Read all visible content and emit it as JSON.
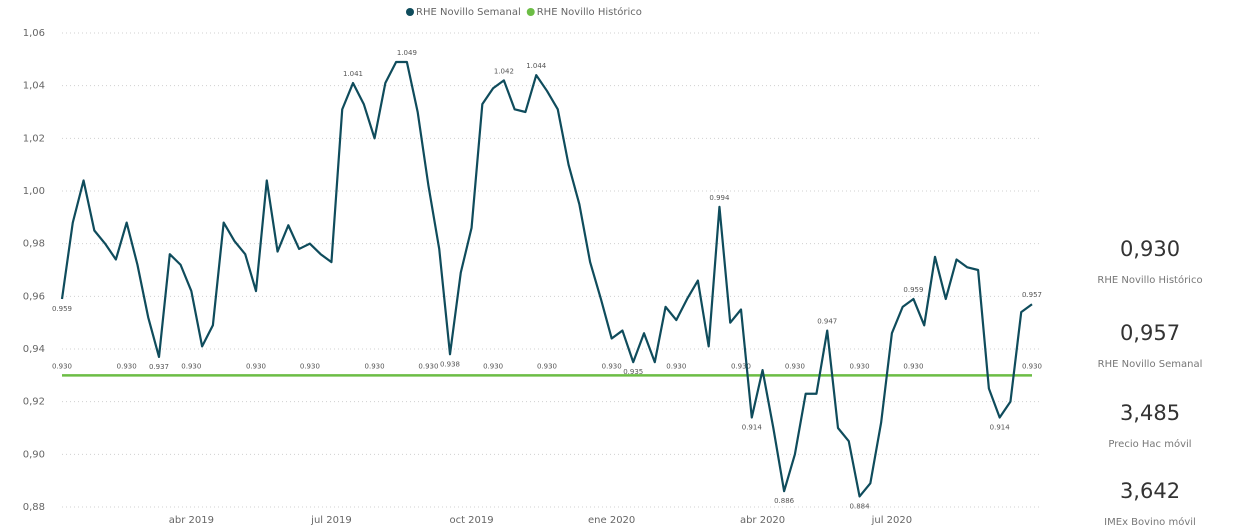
{
  "chart_data": {
    "type": "line",
    "categories": [
      null,
      null,
      null,
      null,
      null,
      null,
      null,
      null,
      null,
      null,
      null,
      null,
      "abr 2019",
      null,
      null,
      null,
      null,
      null,
      null,
      null,
      null,
      null,
      null,
      null,
      null,
      "jul 2019",
      null,
      null,
      null,
      null,
      null,
      null,
      null,
      null,
      null,
      null,
      null,
      null,
      "oct 2019",
      null,
      null,
      null,
      null,
      null,
      null,
      null,
      null,
      null,
      null,
      null,
      null,
      "ene 2020",
      null,
      null,
      null,
      null,
      null,
      null,
      null,
      null,
      null,
      null,
      null,
      null,
      null,
      "abr 2020",
      null,
      null,
      null,
      null,
      null,
      null,
      null,
      null,
      null,
      null,
      null,
      "jul 2020",
      null,
      null,
      null,
      null,
      null,
      null,
      null,
      null,
      null,
      null,
      null,
      null,
      null
    ],
    "series": [
      {
        "name": "RHE Novillo Semanal",
        "color": "#0f4c5c",
        "values": [
          0.959,
          0.988,
          1.004,
          0.985,
          0.98,
          0.974,
          0.988,
          0.972,
          0.952,
          0.937,
          0.976,
          0.972,
          0.962,
          0.941,
          0.949,
          0.988,
          0.981,
          0.976,
          0.962,
          1.004,
          0.977,
          0.987,
          0.978,
          0.98,
          0.976,
          0.973,
          1.031,
          1.041,
          1.033,
          1.02,
          1.041,
          1.049,
          1.049,
          1.03,
          1.002,
          0.978,
          0.938,
          0.969,
          0.986,
          1.033,
          1.039,
          1.042,
          1.031,
          1.03,
          1.044,
          1.038,
          1.031,
          1.01,
          0.995,
          0.973,
          0.959,
          0.944,
          0.947,
          0.935,
          0.946,
          0.935,
          0.956,
          0.951,
          0.959,
          0.966,
          0.941,
          0.994,
          0.95,
          0.955,
          0.914,
          0.932,
          0.91,
          0.886,
          0.9,
          0.923,
          0.923,
          0.947,
          0.91,
          0.905,
          0.884,
          0.889,
          0.912,
          0.946,
          0.956,
          0.959,
          0.949,
          0.975,
          0.959,
          0.974,
          0.971,
          0.97,
          0.925,
          0.914,
          0.92,
          0.954,
          0.957
        ],
        "value_labels": [
          "0.959",
          null,
          null,
          null,
          null,
          null,
          null,
          null,
          null,
          "0.937",
          null,
          null,
          null,
          null,
          null,
          null,
          null,
          null,
          null,
          null,
          null,
          null,
          null,
          null,
          null,
          null,
          null,
          "1.041",
          null,
          null,
          null,
          null,
          "1.049",
          null,
          null,
          null,
          "0.938",
          null,
          null,
          null,
          null,
          "1.042",
          null,
          null,
          "1.044",
          null,
          null,
          null,
          null,
          null,
          null,
          null,
          null,
          "0.935",
          null,
          null,
          null,
          null,
          null,
          null,
          null,
          "0.994",
          null,
          null,
          "0.914",
          null,
          null,
          "0.886",
          null,
          null,
          null,
          "0.947",
          null,
          null,
          "0.884",
          null,
          null,
          null,
          null,
          "0.959",
          null,
          null,
          null,
          null,
          null,
          null,
          null,
          "0.914",
          null,
          null,
          "0.957"
        ]
      },
      {
        "name": "RHE Novillo Histórico",
        "color": "#6cbd45",
        "values": [
          0.93,
          0.93,
          0.93,
          0.93,
          0.93,
          0.93,
          0.93,
          0.93,
          0.93,
          0.93,
          0.93,
          0.93,
          0.93,
          0.93,
          0.93,
          0.93,
          0.93,
          0.93,
          0.93,
          0.93,
          0.93,
          0.93,
          0.93,
          0.93,
          0.93,
          0.93,
          0.93,
          0.93,
          0.93,
          0.93,
          0.93,
          0.93,
          0.93,
          0.93,
          0.93,
          0.93,
          0.93,
          0.93,
          0.93,
          0.93,
          0.93,
          0.93,
          0.93,
          0.93,
          0.93,
          0.93,
          0.93,
          0.93,
          0.93,
          0.93,
          0.93,
          0.93,
          0.93,
          0.93,
          0.93,
          0.93,
          0.93,
          0.93,
          0.93,
          0.93,
          0.93,
          0.93,
          0.93,
          0.93,
          0.93,
          0.93,
          0.93,
          0.93,
          0.93,
          0.93,
          0.93,
          0.93,
          0.93,
          0.93,
          0.93,
          0.93,
          0.93,
          0.93,
          0.93,
          0.93,
          0.93,
          0.93,
          0.93,
          0.93,
          0.93,
          0.93,
          0.93,
          0.93,
          0.93,
          0.93,
          0.93
        ],
        "value_labels": [
          "0.930",
          null,
          null,
          null,
          null,
          null,
          "0.930",
          null,
          null,
          null,
          null,
          null,
          "0.930",
          null,
          null,
          null,
          null,
          null,
          "0.930",
          null,
          null,
          null,
          null,
          "0.930",
          null,
          null,
          null,
          null,
          null,
          "0.930",
          null,
          null,
          null,
          null,
          "0.930",
          null,
          null,
          null,
          null,
          null,
          "0.930",
          null,
          null,
          null,
          null,
          "0.930",
          null,
          null,
          null,
          null,
          null,
          "0.930",
          null,
          null,
          null,
          null,
          null,
          "0.930",
          null,
          null,
          null,
          null,
          null,
          "0.930",
          null,
          null,
          null,
          null,
          "0.930",
          null,
          null,
          null,
          null,
          null,
          "0.930",
          null,
          null,
          null,
          null,
          "0.930",
          null,
          null,
          null,
          null,
          null,
          null,
          null,
          null,
          null,
          null,
          "0.930"
        ]
      }
    ],
    "ylim": [
      0.88,
      1.06
    ],
    "yticks": [
      {
        "value": 0.88,
        "label": "0,88"
      },
      {
        "value": 0.9,
        "label": "0,90"
      },
      {
        "value": 0.92,
        "label": "0,92"
      },
      {
        "value": 0.94,
        "label": "0,94"
      },
      {
        "value": 0.96,
        "label": "0,96"
      },
      {
        "value": 0.98,
        "label": "0,98"
      },
      {
        "value": 1.0,
        "label": "1,00"
      },
      {
        "value": 1.02,
        "label": "1,02"
      },
      {
        "value": 1.04,
        "label": "1,04"
      },
      {
        "value": 1.06,
        "label": "1,06"
      }
    ],
    "grid": true,
    "legend": "top"
  },
  "cards": [
    {
      "value": "0,930",
      "label": "RHE Novillo Histórico"
    },
    {
      "value": "0,957",
      "label": "RHE Novillo Semanal"
    },
    {
      "value": "3,485",
      "label": "Precio Hac móvil"
    },
    {
      "value": "3,642",
      "label": "IMEx Bovino móvil"
    }
  ]
}
